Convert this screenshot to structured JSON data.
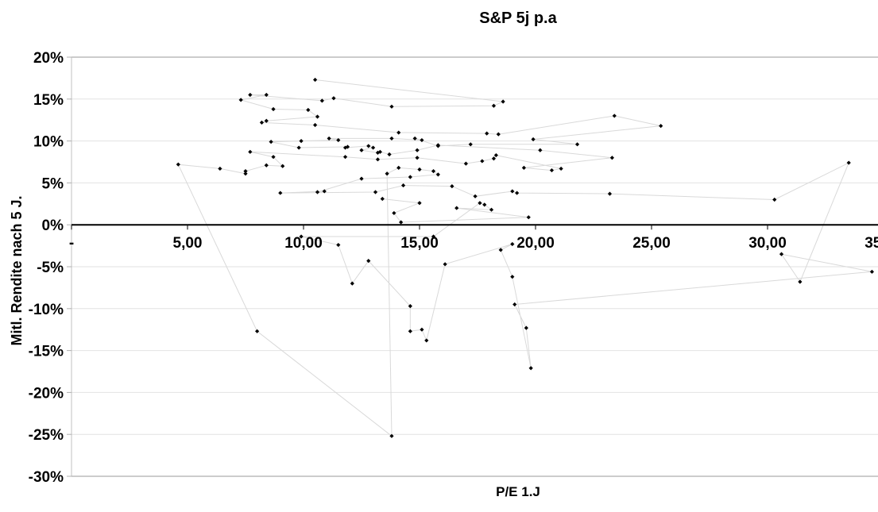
{
  "title": "S&P 5j p.a",
  "colors": {
    "background": "#ffffff",
    "text": "#000000",
    "series_line": "#d9d9d9",
    "marker": "#000000",
    "gridline": "#e2e2e2",
    "plot_border": "#999999",
    "value_axis": "#c0c0c0",
    "value_axis_tick": "#b0b0b0",
    "zero_axis": "#000000"
  },
  "chart_data": {
    "type": "scatter",
    "connected": true,
    "title": "S&P 5j p.a",
    "xlabel": "P/E 1.J",
    "ylabel": "Mitl. Rendite nach 5 J.",
    "xlim": [
      0,
      35
    ],
    "ylim": [
      -30,
      20
    ],
    "grid": true,
    "legend": "none",
    "x_ticks": [
      0,
      5,
      10,
      15,
      20,
      25,
      30,
      35
    ],
    "x_tick_labels": [
      "-",
      "5,00",
      "10,00",
      "15,00",
      "20,00",
      "25,00",
      "30,00",
      "35,00"
    ],
    "y_ticks": [
      20,
      15,
      10,
      5,
      0,
      -5,
      -10,
      -15,
      -20,
      -25,
      -30
    ],
    "y_tick_labels": [
      "20%",
      "15%",
      "10%",
      "5%",
      "0%",
      "-5%",
      "-10%",
      "-15%",
      "-20%",
      "-25%",
      "-30%"
    ],
    "series": [
      {
        "name": "S&P 5j p.a",
        "points": [
          [
            10.5,
            17.3
          ],
          [
            18.6,
            14.7
          ],
          [
            18.2,
            14.2
          ],
          [
            13.8,
            14.1
          ],
          [
            11.3,
            15.1
          ],
          [
            10.8,
            14.8
          ],
          [
            7.7,
            15.5
          ],
          [
            8.4,
            15.5
          ],
          [
            7.3,
            14.9
          ],
          [
            8.7,
            13.8
          ],
          [
            10.2,
            13.7
          ],
          [
            10.6,
            12.9
          ],
          [
            8.4,
            12.4
          ],
          [
            8.2,
            12.2
          ],
          [
            10.5,
            11.9
          ],
          [
            14.1,
            11.0
          ],
          [
            17.9,
            10.9
          ],
          [
            18.4,
            10.8
          ],
          [
            23.4,
            13.0
          ],
          [
            25.4,
            11.8
          ],
          [
            19.9,
            10.2
          ],
          [
            21.8,
            9.6
          ],
          [
            17.2,
            9.6
          ],
          [
            15.8,
            9.4
          ],
          [
            14.8,
            10.3
          ],
          [
            15.1,
            10.1
          ],
          [
            13.8,
            10.3
          ],
          [
            11.1,
            10.3
          ],
          [
            11.5,
            10.1
          ],
          [
            9.9,
            10.0
          ],
          [
            8.6,
            9.9
          ],
          [
            9.8,
            9.2
          ],
          [
            11.9,
            9.3
          ],
          [
            11.8,
            9.2
          ],
          [
            12.8,
            9.4
          ],
          [
            13.0,
            9.2
          ],
          [
            12.5,
            8.9
          ],
          [
            13.2,
            8.6
          ],
          [
            13.3,
            8.7
          ],
          [
            13.7,
            8.4
          ],
          [
            14.9,
            8.9
          ],
          [
            15.8,
            9.5
          ],
          [
            20.2,
            8.9
          ],
          [
            23.3,
            8.0
          ],
          [
            19.5,
            6.8
          ],
          [
            20.7,
            6.5
          ],
          [
            21.1,
            6.7
          ],
          [
            18.3,
            8.3
          ],
          [
            18.2,
            7.9
          ],
          [
            17.7,
            7.6
          ],
          [
            17.0,
            7.3
          ],
          [
            14.9,
            8.0
          ],
          [
            13.2,
            7.8
          ],
          [
            11.8,
            8.1
          ],
          [
            7.7,
            8.7
          ],
          [
            8.7,
            8.1
          ],
          [
            9.1,
            7.0
          ],
          [
            8.4,
            7.1
          ],
          [
            7.5,
            6.4
          ],
          [
            7.5,
            6.1
          ],
          [
            6.4,
            6.7
          ],
          [
            4.6,
            7.2
          ],
          [
            8.0,
            -12.7
          ],
          [
            13.8,
            -25.2
          ],
          [
            13.6,
            6.1
          ],
          [
            14.1,
            6.8
          ],
          [
            15.0,
            6.6
          ],
          [
            15.6,
            6.4
          ],
          [
            15.8,
            6.0
          ],
          [
            14.6,
            5.7
          ],
          [
            12.5,
            5.5
          ],
          [
            10.6,
            3.9
          ],
          [
            10.9,
            4.0
          ],
          [
            9.0,
            3.8
          ],
          [
            13.1,
            3.9
          ],
          [
            14.3,
            4.7
          ],
          [
            16.4,
            4.6
          ],
          [
            17.4,
            3.4
          ],
          [
            19.0,
            4.0
          ],
          [
            19.2,
            3.8
          ],
          [
            23.2,
            3.7
          ],
          [
            30.3,
            3.0
          ],
          [
            33.5,
            7.4
          ],
          [
            31.4,
            -6.8
          ],
          [
            30.6,
            -3.5
          ],
          [
            34.5,
            -5.6
          ],
          [
            19.1,
            -9.5
          ],
          [
            19.6,
            -12.3
          ],
          [
            19.8,
            -17.1
          ],
          [
            19.0,
            -6.2
          ],
          [
            18.5,
            -3.0
          ],
          [
            19.0,
            -2.3
          ],
          [
            16.1,
            -4.7
          ],
          [
            15.3,
            -13.8
          ],
          [
            15.1,
            -12.5
          ],
          [
            14.6,
            -12.7
          ],
          [
            14.6,
            -9.7
          ],
          [
            12.8,
            -4.3
          ],
          [
            12.1,
            -7.0
          ],
          [
            11.5,
            -2.4
          ],
          [
            9.9,
            -1.4
          ],
          [
            15.6,
            -1.4
          ],
          [
            17.6,
            2.6
          ],
          [
            17.8,
            2.4
          ],
          [
            18.1,
            1.8
          ],
          [
            16.6,
            2.0
          ],
          [
            19.7,
            0.9
          ],
          [
            14.2,
            0.3
          ],
          [
            13.9,
            1.4
          ],
          [
            15.0,
            2.6
          ],
          [
            13.4,
            3.1
          ]
        ]
      }
    ]
  }
}
